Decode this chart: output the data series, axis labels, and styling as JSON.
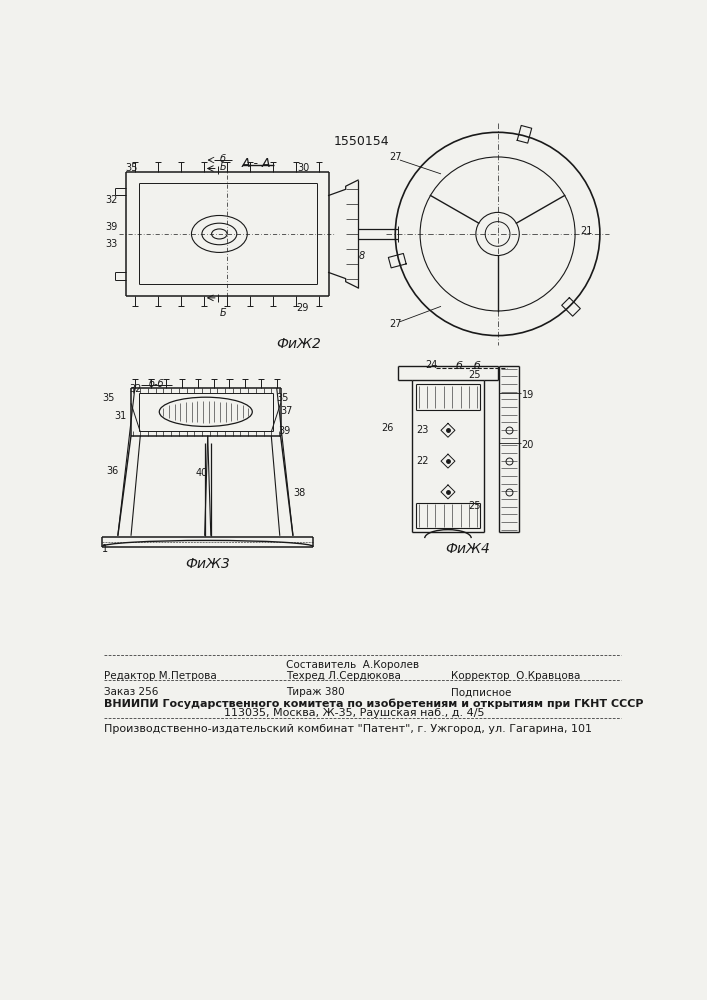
{
  "patent_number": "1550154",
  "bg_color": "#f2f2ee",
  "line_color": "#1a1a1a",
  "text_color": "#1a1a1a",
  "fig2_label": "ФиЖ2",
  "fig3_label": "ФиЖ3",
  "fig4_label": "ФиЖ4",
  "section_aa": "A - A",
  "footer_col1_row0": "Составитель  А.Королев",
  "footer_col1_row1": "Редактор М.Петрова",
  "footer_col2_row1": "Техред Л.Сердюкова",
  "footer_col3_row1": "Корректор  О.Кравцова",
  "footer_zakaz": "Заказ 256",
  "footer_tirazh": "Тираж 380",
  "footer_podpisnoe": "Подписное",
  "footer_vnipi": "ВНИИПИ Государственного комитета по изобретениям и открытиям при ГКНТ СССР",
  "footer_address": "113035, Москва, Ж-35, Раушская наб., д. 4/5",
  "footer_patent": "Производственно-издательский комбинат \"Патент\", г. Ужгород, ул. Гагарина, 101"
}
